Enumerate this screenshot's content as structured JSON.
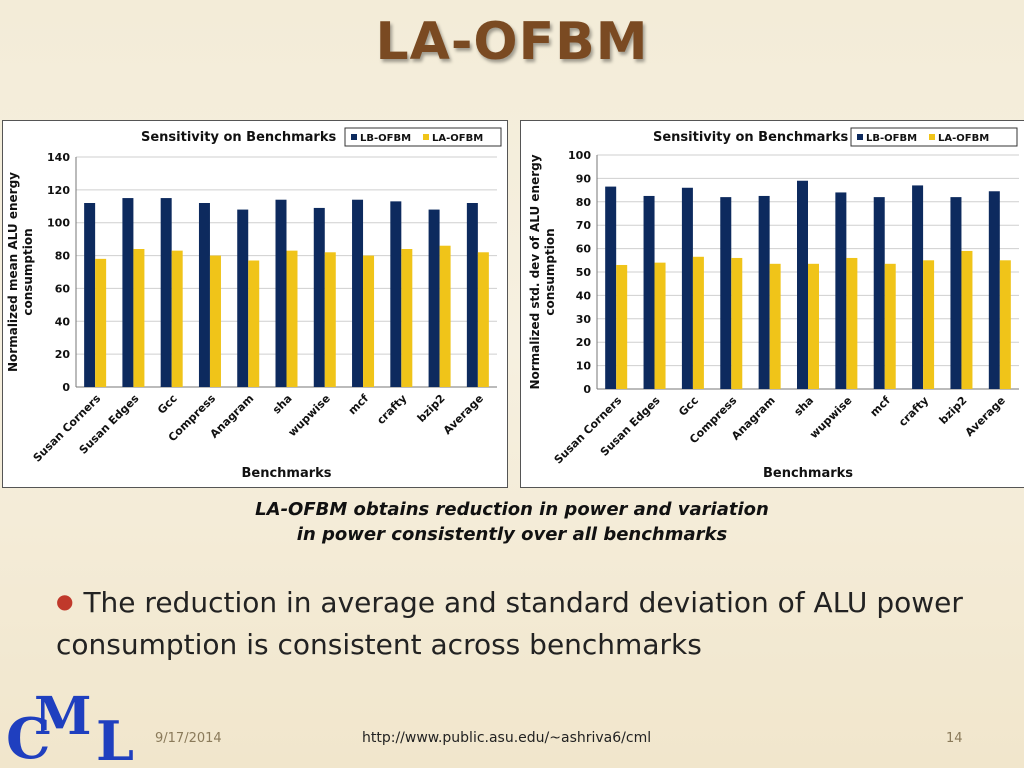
{
  "slide": {
    "title": "LA-OFBM",
    "caption_line1": "LA-OFBM obtains reduction in power and variation",
    "caption_line2": "in power consistently over all benchmarks",
    "bullet": "The reduction in average and standard deviation of ALU power consumption is consistent across benchmarks",
    "footer_date": "9/17/2014",
    "footer_url": "http://www.public.asu.edu/~ashriva6/cml",
    "footer_page": "14",
    "logo_letters": [
      "C",
      "M",
      "L"
    ]
  },
  "colors": {
    "lb": "#0d2a5e",
    "la": "#f0c419",
    "title": "#7a4a22",
    "bullet": "#c0392b",
    "logo": "#1f3fbf"
  },
  "chart_data": [
    {
      "type": "bar",
      "title": "Sensitivity on Benchmarks",
      "xlabel": "Benchmarks",
      "ylabel": "Normalized mean ALU energy consumption",
      "ylim": [
        0,
        140
      ],
      "yticks": [
        0,
        20,
        40,
        60,
        80,
        100,
        120,
        140
      ],
      "grid": true,
      "legend_position": "top-right",
      "categories": [
        "Susan Corners",
        "Susan Edges",
        "Gcc",
        "Compress",
        "Anagram",
        "sha",
        "wupwise",
        "mcf",
        "crafty",
        "bzip2",
        "Average"
      ],
      "series": [
        {
          "name": "LB-OFBM",
          "values": [
            112,
            115,
            115,
            112,
            108,
            114,
            109,
            114,
            113,
            108,
            112
          ]
        },
        {
          "name": "LA-OFBM",
          "values": [
            78,
            84,
            83,
            80,
            77,
            83,
            82,
            80,
            84,
            86,
            82
          ]
        }
      ]
    },
    {
      "type": "bar",
      "title": "Sensitivity on Benchmarks",
      "xlabel": "Benchmarks",
      "ylabel": "Normalized std. dev of ALU energy consumption",
      "ylim": [
        0,
        100
      ],
      "yticks": [
        0,
        10,
        20,
        30,
        40,
        50,
        60,
        70,
        80,
        90,
        100
      ],
      "grid": true,
      "legend_position": "top-right",
      "categories": [
        "Susan Corners",
        "Susan Edges",
        "Gcc",
        "Compress",
        "Anagram",
        "sha",
        "wupwise",
        "mcf",
        "crafty",
        "bzip2",
        "Average"
      ],
      "series": [
        {
          "name": "LB-OFBM",
          "values": [
            86.5,
            82.5,
            86,
            82,
            82.5,
            89,
            84,
            82,
            87,
            82,
            84.5
          ]
        },
        {
          "name": "LA-OFBM",
          "values": [
            53,
            54,
            56.5,
            56,
            53.5,
            53.5,
            56,
            53.5,
            55,
            59,
            55
          ]
        }
      ]
    }
  ]
}
